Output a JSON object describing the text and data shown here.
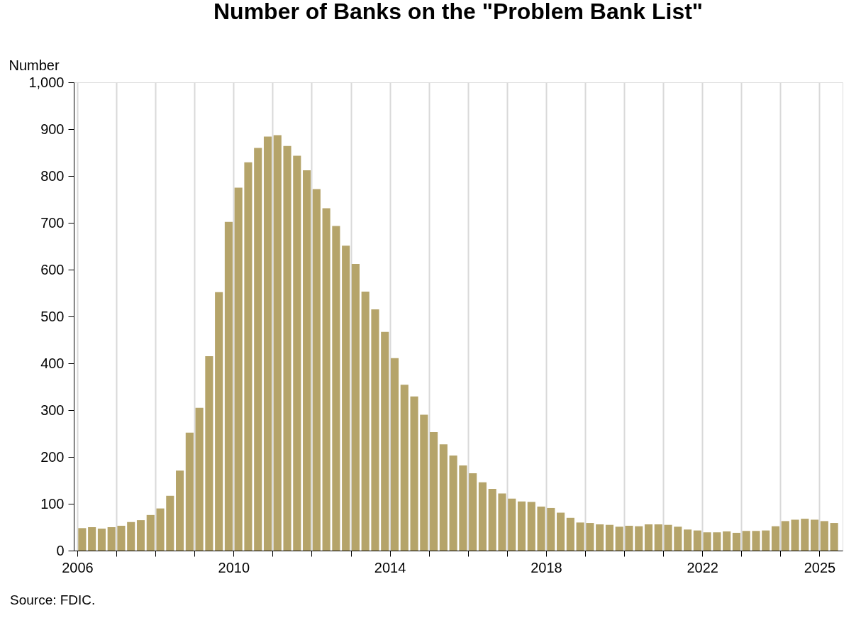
{
  "chart_data": {
    "type": "bar",
    "title": "Number of Banks on the \"Problem Bank List\"",
    "ylabel": "Number",
    "annotations": [
      "Source: FDIC."
    ],
    "x": [
      2006.125,
      2006.375,
      2006.625,
      2006.875,
      2007.125,
      2007.375,
      2007.625,
      2007.875,
      2008.125,
      2008.375,
      2008.625,
      2008.875,
      2009.125,
      2009.375,
      2009.625,
      2009.875,
      2010.125,
      2010.375,
      2010.625,
      2010.875,
      2011.125,
      2011.375,
      2011.625,
      2011.875,
      2012.125,
      2012.375,
      2012.625,
      2012.875,
      2013.125,
      2013.375,
      2013.625,
      2013.875,
      2014.125,
      2014.375,
      2014.625,
      2014.875,
      2015.125,
      2015.375,
      2015.625,
      2015.875,
      2016.125,
      2016.375,
      2016.625,
      2016.875,
      2017.125,
      2017.375,
      2017.625,
      2017.875,
      2018.125,
      2018.375,
      2018.625,
      2018.875,
      2019.125,
      2019.375,
      2019.625,
      2019.875,
      2020.125,
      2020.375,
      2020.625,
      2020.875,
      2021.125,
      2021.375,
      2021.625,
      2021.875,
      2022.125,
      2022.375,
      2022.625,
      2022.875,
      2023.125,
      2023.375,
      2023.625,
      2023.875,
      2024.125,
      2024.375,
      2024.625,
      2024.875,
      2025.125,
      2025.375
    ],
    "values": [
      48,
      50,
      47,
      50,
      53,
      61,
      65,
      76,
      90,
      117,
      171,
      252,
      305,
      415,
      552,
      702,
      775,
      829,
      860,
      884,
      887,
      864,
      843,
      812,
      772,
      731,
      693,
      651,
      612,
      553,
      515,
      467,
      411,
      354,
      329,
      290,
      253,
      227,
      203,
      182,
      165,
      146,
      132,
      122,
      111,
      105,
      104,
      94,
      91,
      81,
      70,
      60,
      59,
      56,
      55,
      51,
      53,
      52,
      56,
      56,
      55,
      51,
      45,
      43,
      39,
      39,
      41,
      38,
      42,
      42,
      43,
      52,
      63,
      66,
      68,
      66,
      63,
      59
    ],
    "color": "#b5a46a",
    "xlim": [
      2006,
      2025.5
    ],
    "xticks": [
      2006,
      {
        "value": 2007,
        "label": null
      },
      {
        "value": 2008,
        "label": null
      },
      {
        "value": 2009,
        "label": null
      },
      2010,
      {
        "value": 2011,
        "label": null
      },
      {
        "value": 2012,
        "label": null
      },
      {
        "value": 2013,
        "label": null
      },
      2014,
      {
        "value": 2015,
        "label": null
      },
      {
        "value": 2016,
        "label": null
      },
      {
        "value": 2017,
        "label": null
      },
      2018,
      {
        "value": 2019,
        "label": null
      },
      {
        "value": 2020,
        "label": null
      },
      {
        "value": 2021,
        "label": null
      },
      2022,
      {
        "value": 2023,
        "label": null
      },
      {
        "value": 2024,
        "label": null
      },
      2025
    ],
    "ylim": [
      0,
      1000
    ],
    "yticks": [
      0,
      100,
      200,
      300,
      400,
      500,
      600,
      700,
      800,
      900,
      {
        "value": 1000,
        "label": "1,000"
      }
    ],
    "grid": "x"
  }
}
